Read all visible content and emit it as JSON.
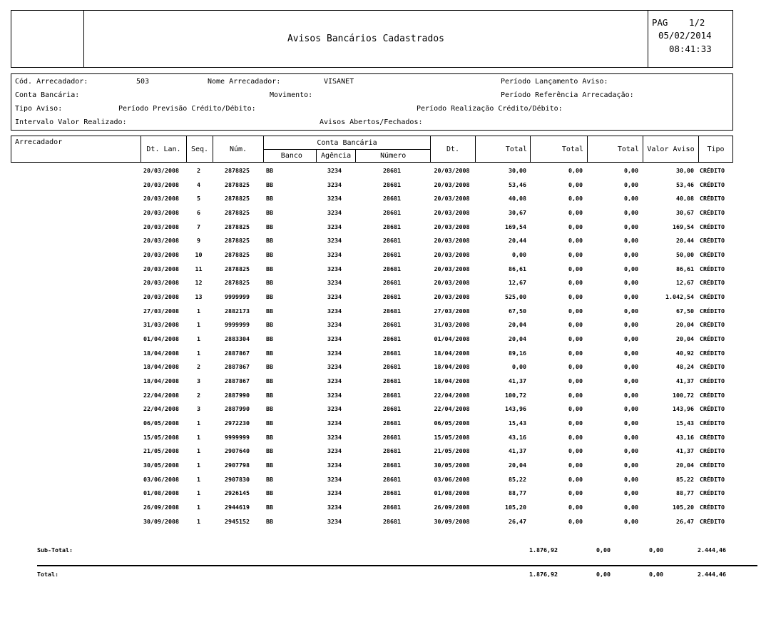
{
  "header": {
    "title": "Avisos Bancários Cadastrados",
    "pag_label": "PAG",
    "page_number": "1/2",
    "date": "05/02/2014",
    "time": "08:41:33"
  },
  "filters": {
    "cod_arrecadador_label": "Cód. Arrecadador:",
    "cod_arrecadador_value": "503",
    "nome_arrecadador_label": "Nome Arrecadador:",
    "nome_arrecadador_value": "VISANET",
    "periodo_lancamento_label": "Período Lançamento Aviso:",
    "conta_bancaria_label": "Conta Bancária:",
    "movimento_label": "Movimento:",
    "periodo_referencia_label": "Período Referência Arrecadação:",
    "tipo_aviso_label": "Tipo Aviso:",
    "periodo_previsao_label": "Período Previsão Crédito/Débito:",
    "periodo_realizacao_label": "Período Realização Crédito/Débito:",
    "intervalo_valor_label": "Intervalo Valor Realizado:",
    "avisos_abertos_label": "Avisos Abertos/Fechados:"
  },
  "table": {
    "headers": {
      "arrecadador": "Arrecadador",
      "dt_lan": "Dt. Lan.",
      "seq": "Seq.",
      "num": "Núm.",
      "conta_bancaria": "Conta Bancária",
      "banco": "Banco",
      "agencia": "Agência",
      "numero": "Número",
      "dt": "Dt.",
      "total": "Total",
      "valor_aviso": "Valor Aviso",
      "tipo": "Tipo"
    },
    "rows": [
      [
        "20/03/2008",
        "2",
        "2878825",
        "BB",
        "3234",
        "28681",
        "20/03/2008",
        "30,00",
        "0,00",
        "0,00",
        "30,00",
        "CRÉDITO"
      ],
      [
        "20/03/2008",
        "4",
        "2878825",
        "BB",
        "3234",
        "28681",
        "20/03/2008",
        "53,46",
        "0,00",
        "0,00",
        "53,46",
        "CRÉDITO"
      ],
      [
        "20/03/2008",
        "5",
        "2878825",
        "BB",
        "3234",
        "28681",
        "20/03/2008",
        "40,08",
        "0,00",
        "0,00",
        "40,08",
        "CRÉDITO"
      ],
      [
        "20/03/2008",
        "6",
        "2878825",
        "BB",
        "3234",
        "28681",
        "20/03/2008",
        "30,67",
        "0,00",
        "0,00",
        "30,67",
        "CRÉDITO"
      ],
      [
        "20/03/2008",
        "7",
        "2878825",
        "BB",
        "3234",
        "28681",
        "20/03/2008",
        "169,54",
        "0,00",
        "0,00",
        "169,54",
        "CRÉDITO"
      ],
      [
        "20/03/2008",
        "9",
        "2878825",
        "BB",
        "3234",
        "28681",
        "20/03/2008",
        "20,44",
        "0,00",
        "0,00",
        "20,44",
        "CRÉDITO"
      ],
      [
        "20/03/2008",
        "10",
        "2878825",
        "BB",
        "3234",
        "28681",
        "20/03/2008",
        "0,00",
        "0,00",
        "0,00",
        "50,00",
        "CRÉDITO"
      ],
      [
        "20/03/2008",
        "11",
        "2878825",
        "BB",
        "3234",
        "28681",
        "20/03/2008",
        "86,61",
        "0,00",
        "0,00",
        "86,61",
        "CRÉDITO"
      ],
      [
        "20/03/2008",
        "12",
        "2878825",
        "BB",
        "3234",
        "28681",
        "20/03/2008",
        "12,67",
        "0,00",
        "0,00",
        "12,67",
        "CRÉDITO"
      ],
      [
        "20/03/2008",
        "13",
        "9999999",
        "BB",
        "3234",
        "28681",
        "20/03/2008",
        "525,00",
        "0,00",
        "0,00",
        "1.042,54",
        "CRÉDITO"
      ],
      [
        "27/03/2008",
        "1",
        "2882173",
        "BB",
        "3234",
        "28681",
        "27/03/2008",
        "67,50",
        "0,00",
        "0,00",
        "67,50",
        "CRÉDITO"
      ],
      [
        "31/03/2008",
        "1",
        "9999999",
        "BB",
        "3234",
        "28681",
        "31/03/2008",
        "20,04",
        "0,00",
        "0,00",
        "20,04",
        "CRÉDITO"
      ],
      [
        "01/04/2008",
        "1",
        "2883304",
        "BB",
        "3234",
        "28681",
        "01/04/2008",
        "20,04",
        "0,00",
        "0,00",
        "20,04",
        "CRÉDITO"
      ],
      [
        "18/04/2008",
        "1",
        "2887867",
        "BB",
        "3234",
        "28681",
        "18/04/2008",
        "89,16",
        "0,00",
        "0,00",
        "40,92",
        "CRÉDITO"
      ],
      [
        "18/04/2008",
        "2",
        "2887867",
        "BB",
        "3234",
        "28681",
        "18/04/2008",
        "0,00",
        "0,00",
        "0,00",
        "48,24",
        "CRÉDITO"
      ],
      [
        "18/04/2008",
        "3",
        "2887867",
        "BB",
        "3234",
        "28681",
        "18/04/2008",
        "41,37",
        "0,00",
        "0,00",
        "41,37",
        "CRÉDITO"
      ],
      [
        "22/04/2008",
        "2",
        "2887990",
        "BB",
        "3234",
        "28681",
        "22/04/2008",
        "100,72",
        "0,00",
        "0,00",
        "100,72",
        "CRÉDITO"
      ],
      [
        "22/04/2008",
        "3",
        "2887990",
        "BB",
        "3234",
        "28681",
        "22/04/2008",
        "143,96",
        "0,00",
        "0,00",
        "143,96",
        "CRÉDITO"
      ],
      [
        "06/05/2008",
        "1",
        "2972230",
        "BB",
        "3234",
        "28681",
        "06/05/2008",
        "15,43",
        "0,00",
        "0,00",
        "15,43",
        "CRÉDITO"
      ],
      [
        "15/05/2008",
        "1",
        "9999999",
        "BB",
        "3234",
        "28681",
        "15/05/2008",
        "43,16",
        "0,00",
        "0,00",
        "43,16",
        "CRÉDITO"
      ],
      [
        "21/05/2008",
        "1",
        "2907640",
        "BB",
        "3234",
        "28681",
        "21/05/2008",
        "41,37",
        "0,00",
        "0,00",
        "41,37",
        "CRÉDITO"
      ],
      [
        "30/05/2008",
        "1",
        "2907798",
        "BB",
        "3234",
        "28681",
        "30/05/2008",
        "20,04",
        "0,00",
        "0,00",
        "20,04",
        "CRÉDITO"
      ],
      [
        "03/06/2008",
        "1",
        "2907830",
        "BB",
        "3234",
        "28681",
        "03/06/2008",
        "85,22",
        "0,00",
        "0,00",
        "85,22",
        "CRÉDITO"
      ],
      [
        "01/08/2008",
        "1",
        "2926145",
        "BB",
        "3234",
        "28681",
        "01/08/2008",
        "88,77",
        "0,00",
        "0,00",
        "88,77",
        "CRÉDITO"
      ],
      [
        "26/09/2008",
        "1",
        "2944619",
        "BB",
        "3234",
        "28681",
        "26/09/2008",
        "105,20",
        "0,00",
        "0,00",
        "105,20",
        "CRÉDITO"
      ],
      [
        "30/09/2008",
        "1",
        "2945152",
        "BB",
        "3234",
        "28681",
        "30/09/2008",
        "26,47",
        "0,00",
        "0,00",
        "26,47",
        "CRÉDITO"
      ]
    ]
  },
  "totals": {
    "subtotal_label": "Sub-Total:",
    "total_label": "Total:",
    "subtotal_values": [
      "1.876,92",
      "0,00",
      "0,00",
      "2.444,46"
    ],
    "total_values": [
      "1.876,92",
      "0,00",
      "0,00",
      "2.444,46"
    ]
  }
}
